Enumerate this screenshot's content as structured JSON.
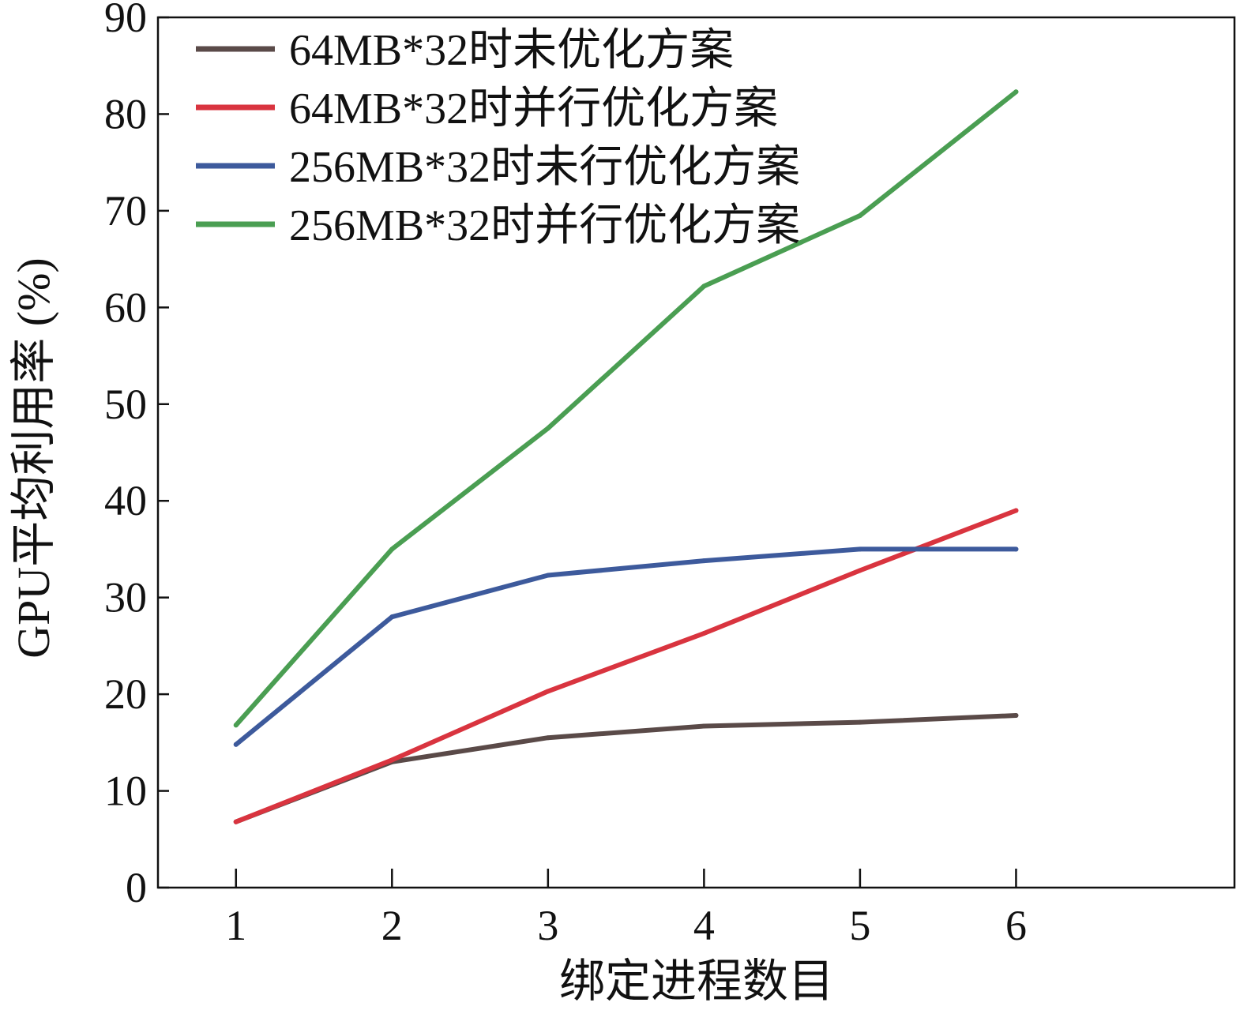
{
  "chart_data": {
    "type": "line",
    "xlabel": "绑定进程数目",
    "ylabel": "GPU平均利用率 (%)",
    "x": [
      1,
      2,
      3,
      4,
      5,
      6
    ],
    "xlim": [
      0.5,
      7.4
    ],
    "ylim": [
      0,
      90
    ],
    "yticks": [
      0,
      10,
      20,
      30,
      40,
      50,
      60,
      70,
      80,
      90
    ],
    "xticks": [
      1,
      2,
      3,
      4,
      5,
      6
    ],
    "grid": false,
    "legend_position": "top-left",
    "series": [
      {
        "name": "64MB*32时未优化方案",
        "color": "#5a4a48",
        "values": [
          6.8,
          13.0,
          15.5,
          16.7,
          17.1,
          17.8
        ]
      },
      {
        "name": "64MB*32时并行优化方案",
        "color": "#d9343f",
        "values": [
          6.8,
          13.2,
          20.3,
          26.3,
          32.8,
          39.0
        ]
      },
      {
        "name": "256MB*32时未行优化方案",
        "color": "#3d5a9c",
        "values": [
          14.8,
          28.0,
          32.3,
          33.8,
          35.0,
          35.0
        ]
      },
      {
        "name": "256MB*32时并行优化方案",
        "color": "#4a9e52",
        "values": [
          16.8,
          35.0,
          47.5,
          62.2,
          69.5,
          82.3
        ]
      }
    ]
  }
}
